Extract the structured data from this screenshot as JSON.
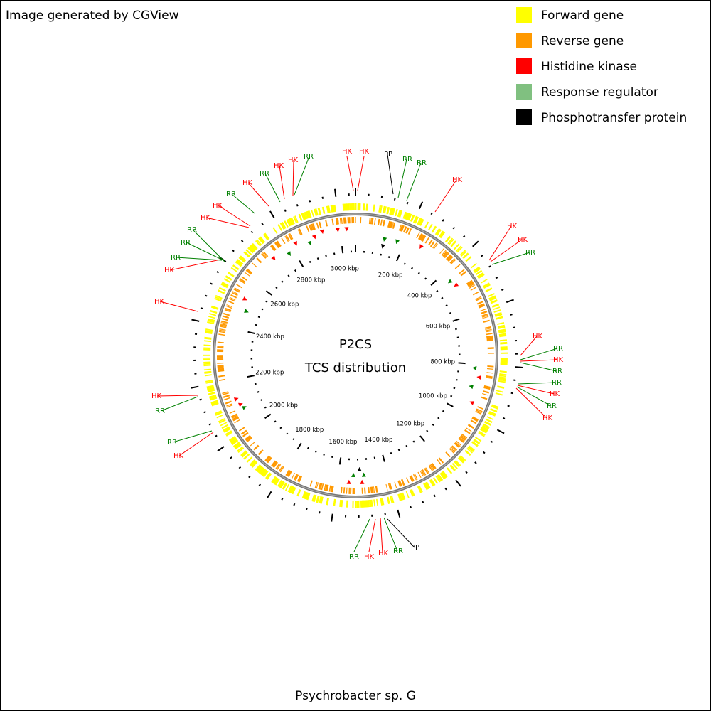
{
  "header": {
    "credit": "Image generated by CGView"
  },
  "legend": [
    {
      "label": "Forward gene",
      "color": "#ffff00"
    },
    {
      "label": "Reverse gene",
      "color": "#ff9900"
    },
    {
      "label": "Histidine kinase",
      "color": "#ff0000"
    },
    {
      "label": "Response regulator",
      "color": "#80c080"
    },
    {
      "label": "Phosphotransfer protein",
      "color": "#000000"
    }
  ],
  "map": {
    "title": "P2CS",
    "subtitle": "TCS distribution",
    "ticks": [
      "200 kbp",
      "400 kbp",
      "600 kbp",
      "800 kbp",
      "1000 kbp",
      "1200 kbp",
      "1400 kbp",
      "1600 kbp",
      "1800 kbp",
      "2000 kbp",
      "2200 kbp",
      "2400 kbp",
      "2600 kbp",
      "2800 kbp",
      "3000 kbp"
    ],
    "features": [
      {
        "text": "HK",
        "color": "#ff0000"
      },
      {
        "text": "HK",
        "color": "#ff0000"
      },
      {
        "text": "PP",
        "color": "#000000"
      },
      {
        "text": "RR",
        "color": "#008000"
      },
      {
        "text": "RR",
        "color": "#008000"
      },
      {
        "text": "HK",
        "color": "#ff0000"
      },
      {
        "text": "HK",
        "color": "#ff0000"
      },
      {
        "text": "HK",
        "color": "#ff0000"
      },
      {
        "text": "RR",
        "color": "#008000"
      },
      {
        "text": "HK",
        "color": "#ff0000"
      },
      {
        "text": "RR",
        "color": "#008000"
      },
      {
        "text": "HK",
        "color": "#ff0000"
      },
      {
        "text": "RR",
        "color": "#008000"
      },
      {
        "text": "RR",
        "color": "#008000"
      },
      {
        "text": "HK",
        "color": "#ff0000"
      },
      {
        "text": "RR",
        "color": "#008000"
      },
      {
        "text": "HK",
        "color": "#ff0000"
      },
      {
        "text": "PP",
        "color": "#000000"
      },
      {
        "text": "RR",
        "color": "#008000"
      },
      {
        "text": "HK",
        "color": "#ff0000"
      },
      {
        "text": "HK",
        "color": "#ff0000"
      },
      {
        "text": "RR",
        "color": "#008000"
      },
      {
        "text": "HK",
        "color": "#ff0000"
      },
      {
        "text": "RR",
        "color": "#008000"
      },
      {
        "text": "RR",
        "color": "#008000"
      },
      {
        "text": "HK",
        "color": "#ff0000"
      },
      {
        "text": "HK",
        "color": "#ff0000"
      },
      {
        "text": "HK",
        "color": "#ff0000"
      },
      {
        "text": "RR",
        "color": "#008000"
      },
      {
        "text": "RR",
        "color": "#008000"
      },
      {
        "text": "RR",
        "color": "#008000"
      },
      {
        "text": "HK",
        "color": "#ff0000"
      },
      {
        "text": "HK",
        "color": "#ff0000"
      },
      {
        "text": "RR",
        "color": "#008000"
      },
      {
        "text": "HK",
        "color": "#ff0000"
      },
      {
        "text": "RR",
        "color": "#008000"
      },
      {
        "text": "HK",
        "color": "#ff0000"
      },
      {
        "text": "HK",
        "color": "#ff0000"
      },
      {
        "text": "RR",
        "color": "#008000"
      }
    ]
  },
  "footer": {
    "caption": "Psychrobacter sp. G"
  }
}
